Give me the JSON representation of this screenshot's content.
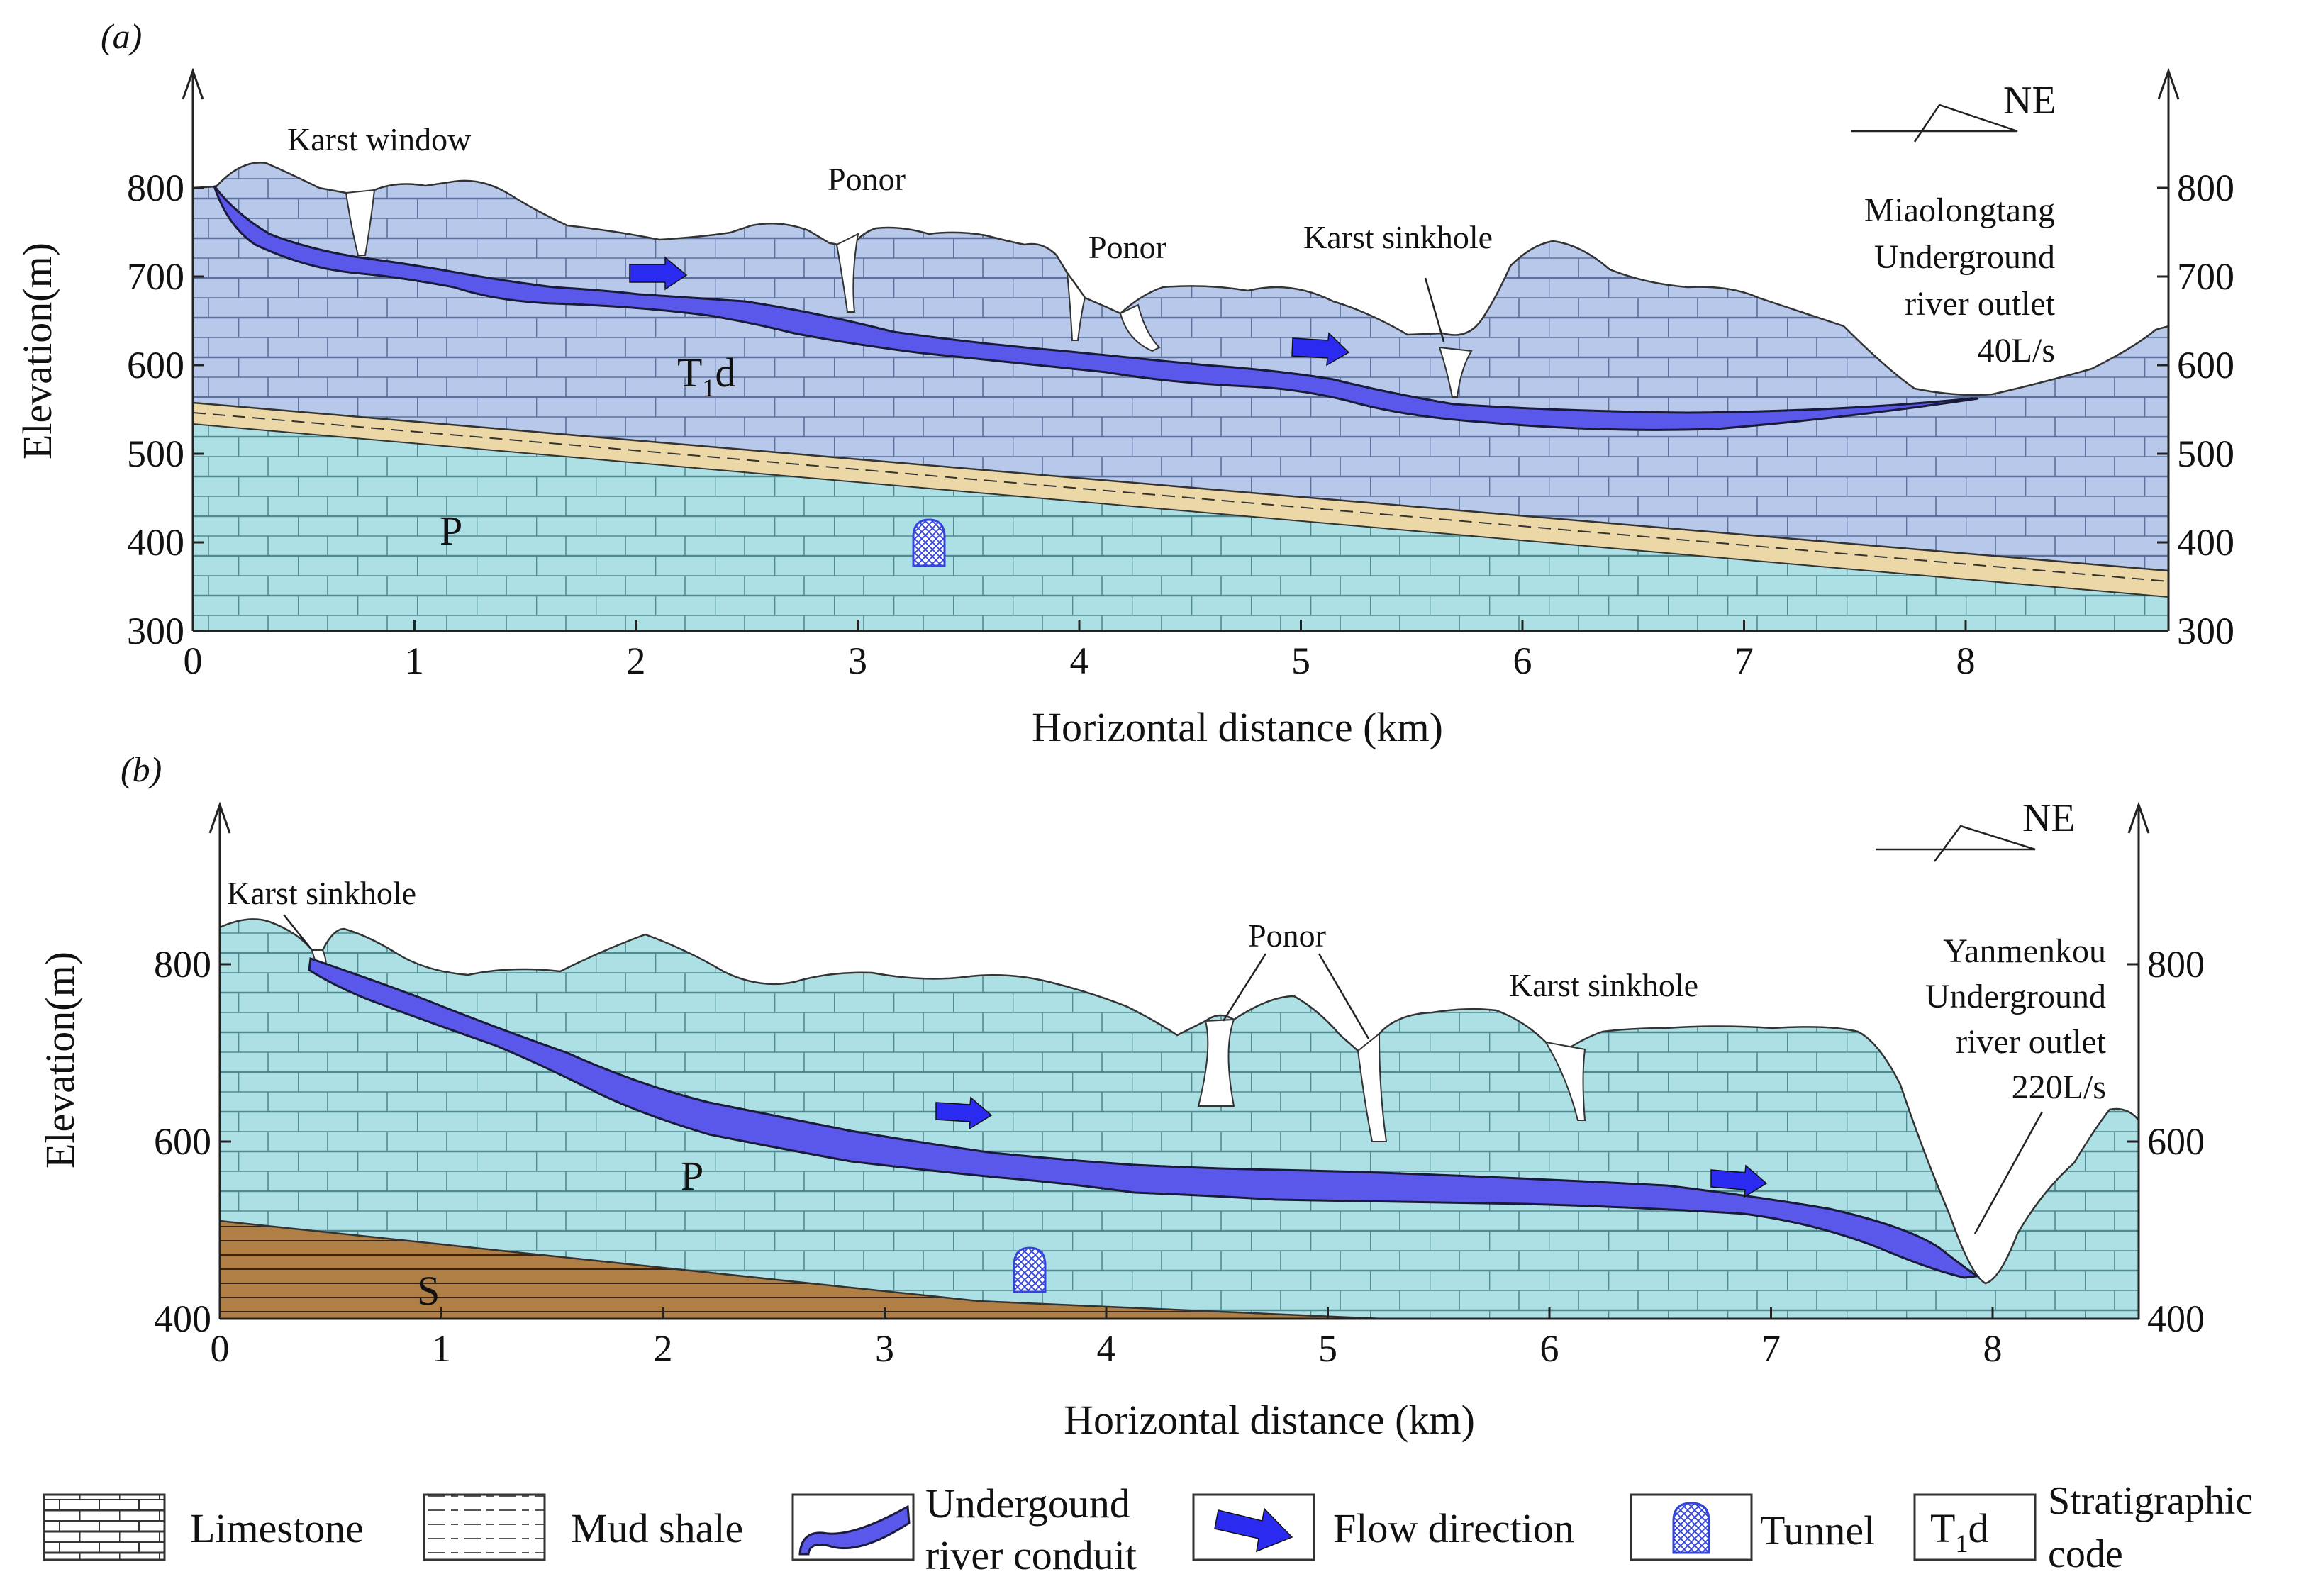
{
  "panel_a": {
    "label": "(a)",
    "y_axis_label": "Elevation(m)",
    "x_axis_label": "Horizontal distance (km)",
    "x_ticks": [
      "0",
      "1",
      "2",
      "3",
      "4",
      "5",
      "6",
      "7",
      "8"
    ],
    "y_ticks": [
      "300",
      "400",
      "500",
      "600",
      "700",
      "800"
    ],
    "orientation": "NE",
    "annotations": {
      "karst_window": "Karst window",
      "ponor_1": "Ponor",
      "ponor_2": "Ponor",
      "karst_sinkhole": "Karst sinkhole",
      "outlet_line1": "Miaolongtang",
      "outlet_line2": "Underground",
      "outlet_line3": "river outlet",
      "outlet_line4": "40L/s"
    },
    "strata": {
      "upper": "T",
      "upper_sub": "1",
      "upper_suffix": "d",
      "lower": "P"
    }
  },
  "panel_b": {
    "label": "(b)",
    "y_axis_label": "Elevation(m)",
    "x_axis_label": "Horizontal distance (km)",
    "x_ticks": [
      "0",
      "1",
      "2",
      "3",
      "4",
      "5",
      "6",
      "7",
      "8"
    ],
    "y_ticks": [
      "400",
      "600",
      "800"
    ],
    "orientation": "NE",
    "annotations": {
      "karst_sinkhole_1": "Karst sinkhole",
      "ponor": "Ponor",
      "karst_sinkhole_2": "Karst sinkhole",
      "outlet_line1": "Yanmenkou",
      "outlet_line2": "Underground",
      "outlet_line3": "river outlet",
      "outlet_line4": "220L/s"
    },
    "strata": {
      "upper": "P",
      "lower": "S"
    }
  },
  "legend": {
    "limestone": "Limestone",
    "mud_shale": "Mud shale",
    "conduit_line1": "Undergound",
    "conduit_line2": "river conduit",
    "flow": "Flow direction",
    "tunnel": "Tunnel",
    "code_sample": "T",
    "code_sample_sub": "1",
    "code_sample_suffix": "d",
    "code_line1": "Stratigraphic",
    "code_line2": "code"
  },
  "colors": {
    "t1d_limestone": "#b7c8ea",
    "p_limestone": "#ade0e4",
    "mud_shale_band": "#ecd8a6",
    "s_shale": "#b07f45",
    "conduit": "#5a58ea",
    "flow_arrow": "#2a2af0",
    "tunnel_hatch": "#3344dd"
  }
}
